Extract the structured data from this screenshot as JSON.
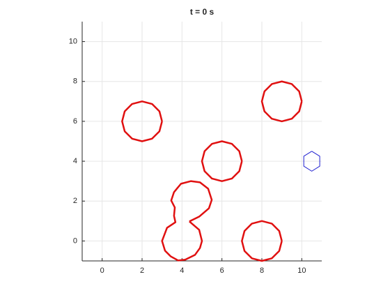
{
  "chart_data": {
    "type": "line",
    "title": "t = 0 s",
    "xlim": [
      -1,
      11
    ],
    "ylim": [
      -1,
      11
    ],
    "xticks": [
      0,
      2,
      4,
      6,
      8,
      10
    ],
    "yticks": [
      0,
      2,
      4,
      6,
      8,
      10
    ],
    "grid": true,
    "series": [
      {
        "color": "#e01010",
        "x": [
          3,
          2.87,
          2.5,
          2,
          1.5,
          1.13,
          1,
          1.13,
          1.5,
          2,
          2.5,
          2.87,
          3
        ],
        "y": [
          6,
          6.5,
          6.87,
          7,
          6.87,
          6.5,
          6,
          5.5,
          5.13,
          5,
          5.13,
          5.5,
          6
        ]
      },
      {
        "color": "#e01010",
        "x": [
          10,
          9.87,
          9.5,
          9,
          8.5,
          8.13,
          8,
          8.13,
          8.5,
          9,
          9.5,
          9.87,
          10
        ],
        "y": [
          7,
          7.5,
          7.87,
          8,
          7.87,
          7.5,
          7,
          6.5,
          6.13,
          6,
          6.13,
          6.5,
          7
        ]
      },
      {
        "color": "#e01010",
        "x": [
          7,
          6.87,
          6.5,
          6,
          5.5,
          5.13,
          5,
          5.13,
          5.5,
          6,
          6.5,
          6.87,
          7
        ],
        "y": [
          4,
          4.5,
          4.87,
          5,
          4.87,
          4.5,
          4,
          3.5,
          3.13,
          3,
          3.13,
          3.5,
          4
        ]
      },
      {
        "color": "#e01010",
        "x": [
          9,
          8.87,
          8.5,
          8,
          7.5,
          7.13,
          7,
          7.13,
          7.5,
          8,
          8.5,
          8.87,
          9
        ],
        "y": [
          0,
          0.5,
          0.87,
          1,
          0.87,
          0.5,
          0,
          -0.5,
          -0.87,
          -1,
          -0.87,
          -0.5,
          0
        ]
      },
      {
        "color": "#e01010",
        "x": [
          4.37,
          4.86,
          5.35,
          5.49,
          5.31,
          4.9,
          4.44,
          3.95,
          3.6,
          3.46,
          3.64,
          3.6,
          3.67,
          3.25,
          3,
          3.15,
          3.43,
          3.81,
          4.16,
          4.65,
          4.9,
          5,
          4.86,
          4.37
        ],
        "y": [
          0.98,
          1.22,
          1.64,
          2.06,
          2.62,
          2.94,
          3,
          2.87,
          2.45,
          2.03,
          1.68,
          1.26,
          0.94,
          0.66,
          0,
          -0.49,
          -0.77,
          -0.98,
          -0.94,
          -0.7,
          -0.35,
          0,
          0.56,
          0.98
        ]
      },
      {
        "color": "#1f1fd0",
        "x": [
          10.5,
          10.9,
          10.9,
          10.5,
          10.1,
          10.1,
          10.5
        ],
        "y": [
          4.5,
          4.25,
          3.75,
          3.5,
          3.75,
          4.25,
          4.5
        ]
      }
    ]
  }
}
